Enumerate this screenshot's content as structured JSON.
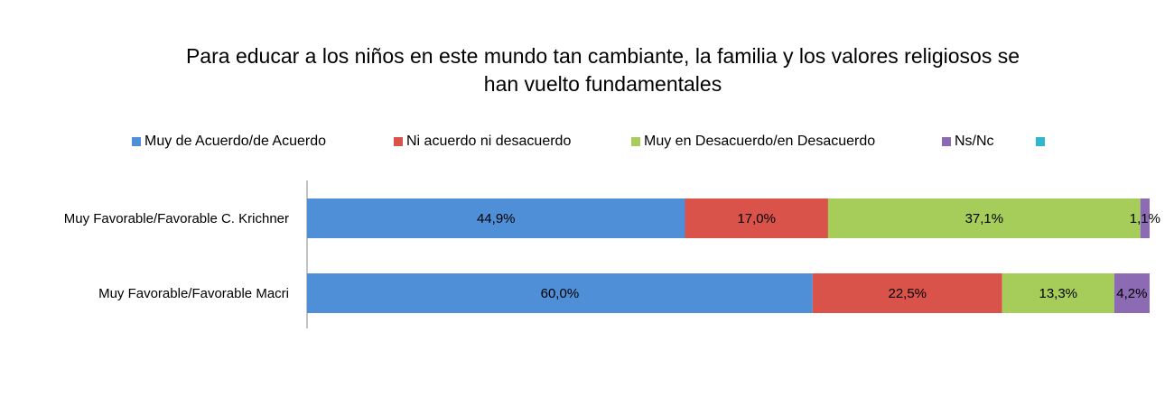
{
  "chart_data": {
    "type": "bar",
    "orientation": "horizontal",
    "stacked": true,
    "title_lines": [
      "Para educar a los niños en este mundo tan cambiante, la familia y los valores religiosos se",
      "han vuelto fundamentales"
    ],
    "categories": [
      "Muy Favorable/Favorable C. Krichner",
      "Muy Favorable/Favorable Macri"
    ],
    "series": [
      {
        "name": "Muy de Acuerdo/de Acuerdo",
        "color": "#4F8FD8",
        "values": [
          44.9,
          60.0
        ],
        "labels": [
          "44,9%",
          "60,0%"
        ]
      },
      {
        "name": "Ni acuerdo ni desacuerdo",
        "color": "#D9534A",
        "values": [
          17.0,
          22.5
        ],
        "labels": [
          "17,0%",
          "22,5%"
        ]
      },
      {
        "name": "Muy en Desacuerdo/en Desacuerdo",
        "color": "#A6CD5A",
        "values": [
          37.1,
          13.3
        ],
        "labels": [
          "37,1%",
          "13,3%"
        ]
      },
      {
        "name": "Ns/Nc",
        "color": "#8C6BB4",
        "values": [
          1.1,
          4.2
        ],
        "labels": [
          "1,1%",
          "4,2%"
        ]
      },
      {
        "name": "",
        "color": "#2EB7CF",
        "values": [
          0,
          0
        ],
        "labels": [
          "",
          ""
        ]
      }
    ],
    "xlim": [
      0,
      100
    ],
    "legend_position": "top",
    "grid": false
  }
}
